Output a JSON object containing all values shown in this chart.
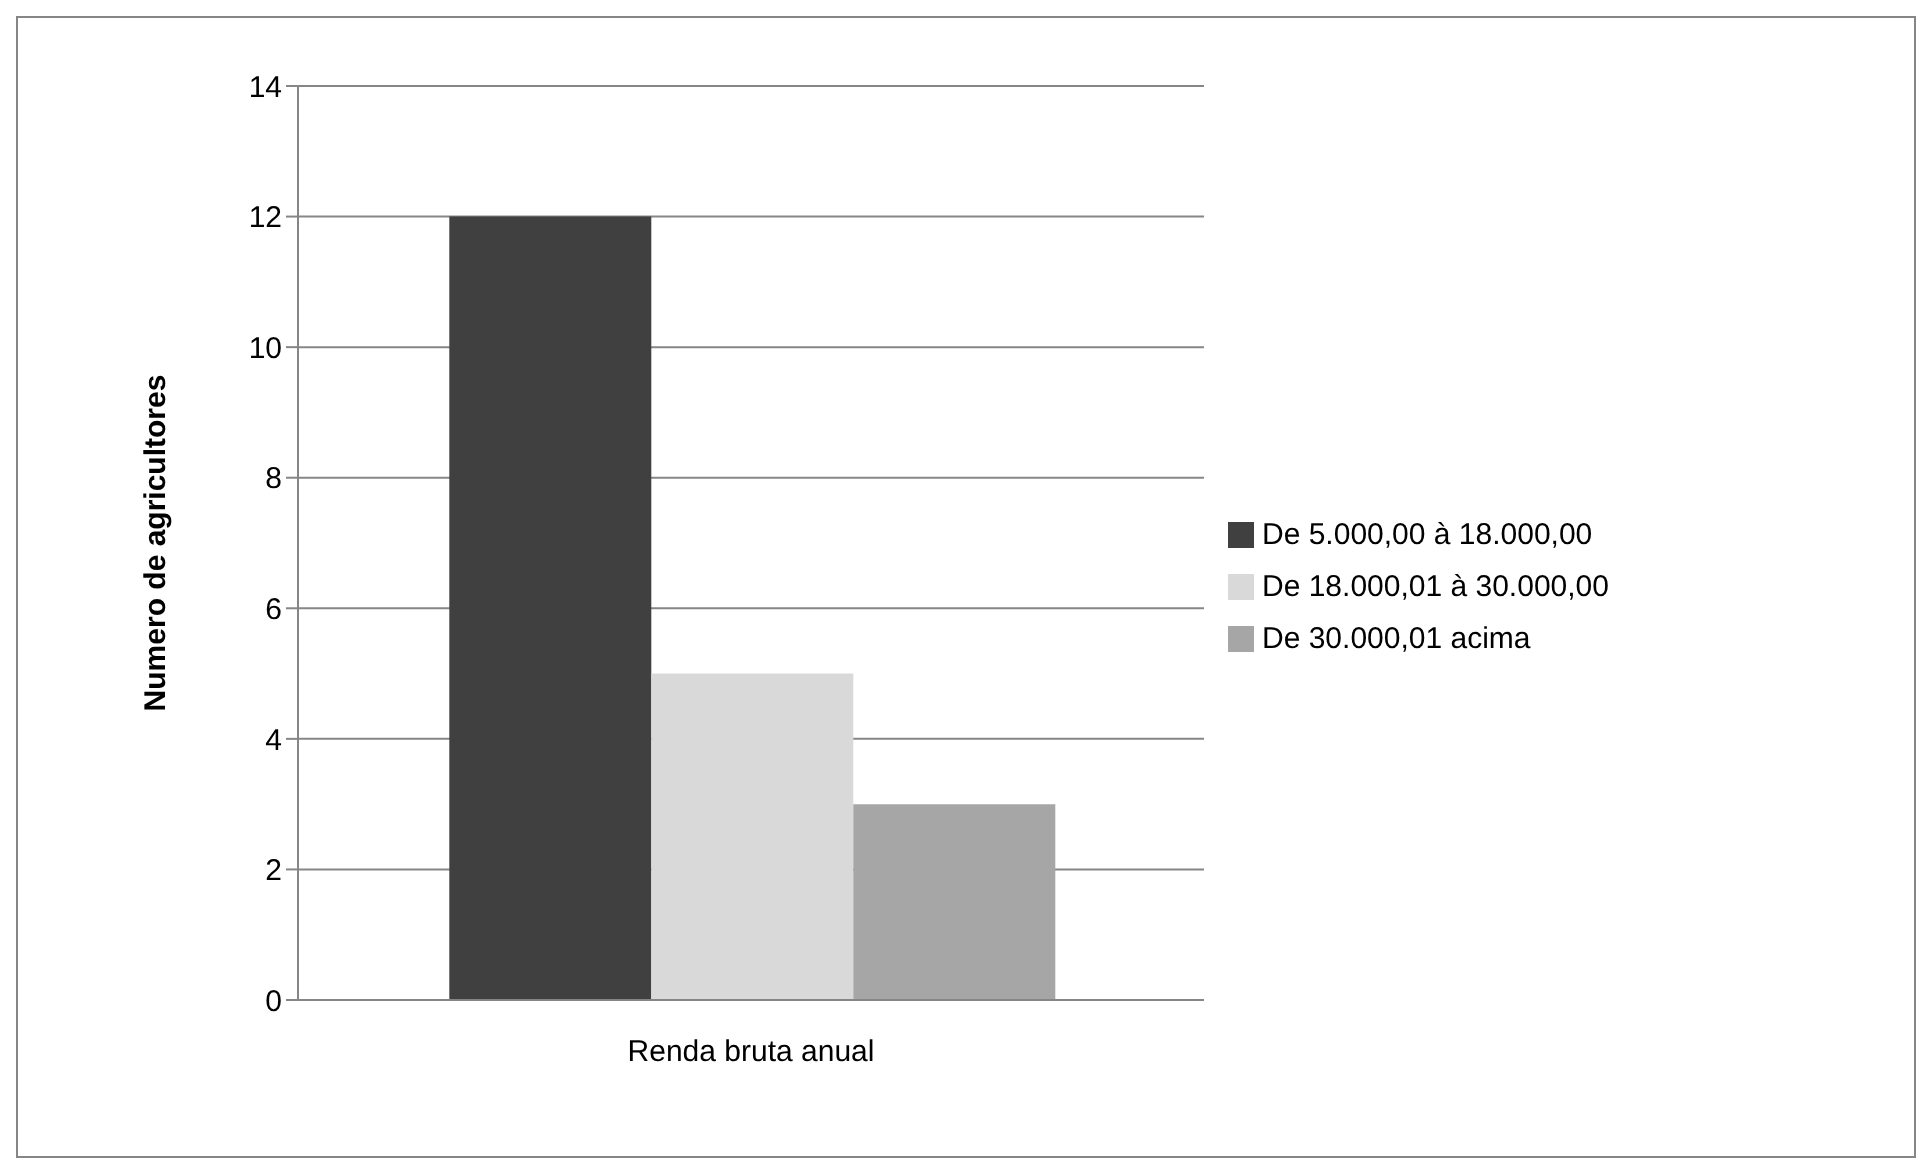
{
  "chart_data": {
    "type": "bar",
    "ylabel": "Numero de agricultores",
    "categories": [
      "Renda bruta anual"
    ],
    "series": [
      {
        "name": "De 5.000,00 à 18.000,00",
        "color": "#404040",
        "values": [
          12
        ]
      },
      {
        "name": "De 18.000,01 à 30.000,00",
        "color": "#d9d9d9",
        "values": [
          5
        ]
      },
      {
        "name": "De 30.000,01 acima",
        "color": "#a6a6a6",
        "values": [
          3
        ]
      }
    ],
    "ylim": [
      0,
      14
    ],
    "yticks": [
      0,
      2,
      4,
      6,
      8,
      10,
      12,
      14
    ],
    "grid": "y",
    "legend": "right"
  }
}
